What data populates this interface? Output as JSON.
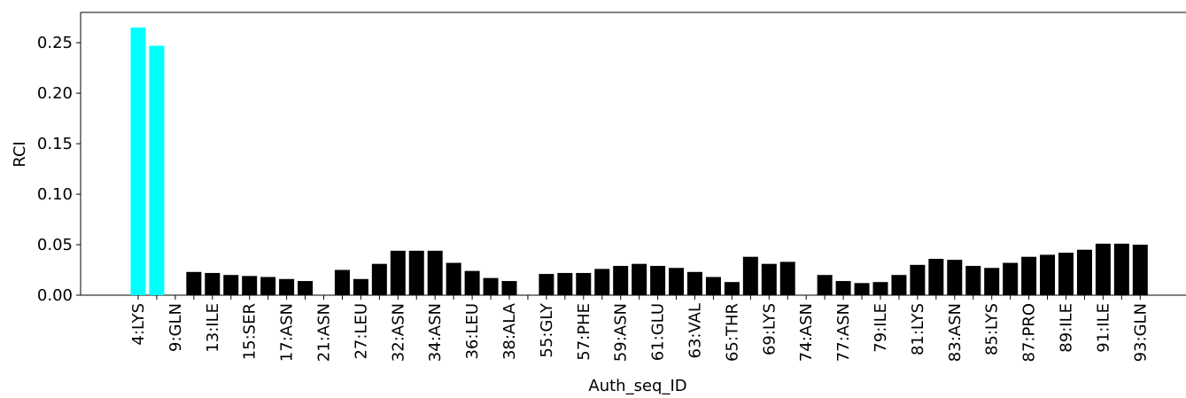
{
  "chart_data": {
    "type": "bar",
    "xlabel": "Auth_seq_ID",
    "ylabel": "RCI",
    "ylim": [
      0,
      0.28
    ],
    "yticks": [
      0.0,
      0.05,
      0.1,
      0.15,
      0.2,
      0.25
    ],
    "ytick_labels": [
      "0.00",
      "0.05",
      "0.10",
      "0.15",
      "0.20",
      "0.25"
    ],
    "grid": false,
    "colors": {
      "highlight": "#00ffff",
      "normal": "#000000"
    },
    "bars": [
      {
        "label": "4:LYS",
        "value": 0.265,
        "highlight": true
      },
      {
        "label": "",
        "value": 0.247,
        "highlight": true
      },
      {
        "label": "9:GLN",
        "value": 0.0,
        "highlight": false
      },
      {
        "label": "",
        "value": 0.023,
        "highlight": false
      },
      {
        "label": "13:ILE",
        "value": 0.022,
        "highlight": false
      },
      {
        "label": "",
        "value": 0.02,
        "highlight": false
      },
      {
        "label": "15:SER",
        "value": 0.019,
        "highlight": false
      },
      {
        "label": "",
        "value": 0.018,
        "highlight": false
      },
      {
        "label": "17:ASN",
        "value": 0.016,
        "highlight": false
      },
      {
        "label": "",
        "value": 0.014,
        "highlight": false
      },
      {
        "label": "21:ASN",
        "value": 0.0,
        "highlight": false
      },
      {
        "label": "",
        "value": 0.025,
        "highlight": false
      },
      {
        "label": "27:LEU",
        "value": 0.016,
        "highlight": false
      },
      {
        "label": "",
        "value": 0.031,
        "highlight": false
      },
      {
        "label": "32:ASN",
        "value": 0.044,
        "highlight": false
      },
      {
        "label": "",
        "value": 0.044,
        "highlight": false
      },
      {
        "label": "34:ASN",
        "value": 0.044,
        "highlight": false
      },
      {
        "label": "",
        "value": 0.032,
        "highlight": false
      },
      {
        "label": "36:LEU",
        "value": 0.024,
        "highlight": false
      },
      {
        "label": "",
        "value": 0.017,
        "highlight": false
      },
      {
        "label": "38:ALA",
        "value": 0.014,
        "highlight": false
      },
      {
        "label": "",
        "value": 0.0,
        "highlight": false
      },
      {
        "label": "55:GLY",
        "value": 0.021,
        "highlight": false
      },
      {
        "label": "",
        "value": 0.022,
        "highlight": false
      },
      {
        "label": "57:PHE",
        "value": 0.022,
        "highlight": false
      },
      {
        "label": "",
        "value": 0.026,
        "highlight": false
      },
      {
        "label": "59:ASN",
        "value": 0.029,
        "highlight": false
      },
      {
        "label": "",
        "value": 0.031,
        "highlight": false
      },
      {
        "label": "61:GLU",
        "value": 0.029,
        "highlight": false
      },
      {
        "label": "",
        "value": 0.027,
        "highlight": false
      },
      {
        "label": "63:VAL",
        "value": 0.023,
        "highlight": false
      },
      {
        "label": "",
        "value": 0.018,
        "highlight": false
      },
      {
        "label": "65:THR",
        "value": 0.013,
        "highlight": false
      },
      {
        "label": "",
        "value": 0.038,
        "highlight": false
      },
      {
        "label": "69:LYS",
        "value": 0.031,
        "highlight": false
      },
      {
        "label": "",
        "value": 0.033,
        "highlight": false
      },
      {
        "label": "74:ASN",
        "value": 0.0,
        "highlight": false
      },
      {
        "label": "",
        "value": 0.02,
        "highlight": false
      },
      {
        "label": "77:ASN",
        "value": 0.014,
        "highlight": false
      },
      {
        "label": "",
        "value": 0.012,
        "highlight": false
      },
      {
        "label": "79:ILE",
        "value": 0.013,
        "highlight": false
      },
      {
        "label": "",
        "value": 0.02,
        "highlight": false
      },
      {
        "label": "81:LYS",
        "value": 0.03,
        "highlight": false
      },
      {
        "label": "",
        "value": 0.036,
        "highlight": false
      },
      {
        "label": "83:ASN",
        "value": 0.035,
        "highlight": false
      },
      {
        "label": "",
        "value": 0.029,
        "highlight": false
      },
      {
        "label": "85:LYS",
        "value": 0.027,
        "highlight": false
      },
      {
        "label": "",
        "value": 0.032,
        "highlight": false
      },
      {
        "label": "87:PRO",
        "value": 0.038,
        "highlight": false
      },
      {
        "label": "",
        "value": 0.04,
        "highlight": false
      },
      {
        "label": "89:ILE",
        "value": 0.042,
        "highlight": false
      },
      {
        "label": "",
        "value": 0.045,
        "highlight": false
      },
      {
        "label": "91:ILE",
        "value": 0.051,
        "highlight": false
      },
      {
        "label": "",
        "value": 0.051,
        "highlight": false
      },
      {
        "label": "93:GLN",
        "value": 0.05,
        "highlight": false
      }
    ]
  }
}
